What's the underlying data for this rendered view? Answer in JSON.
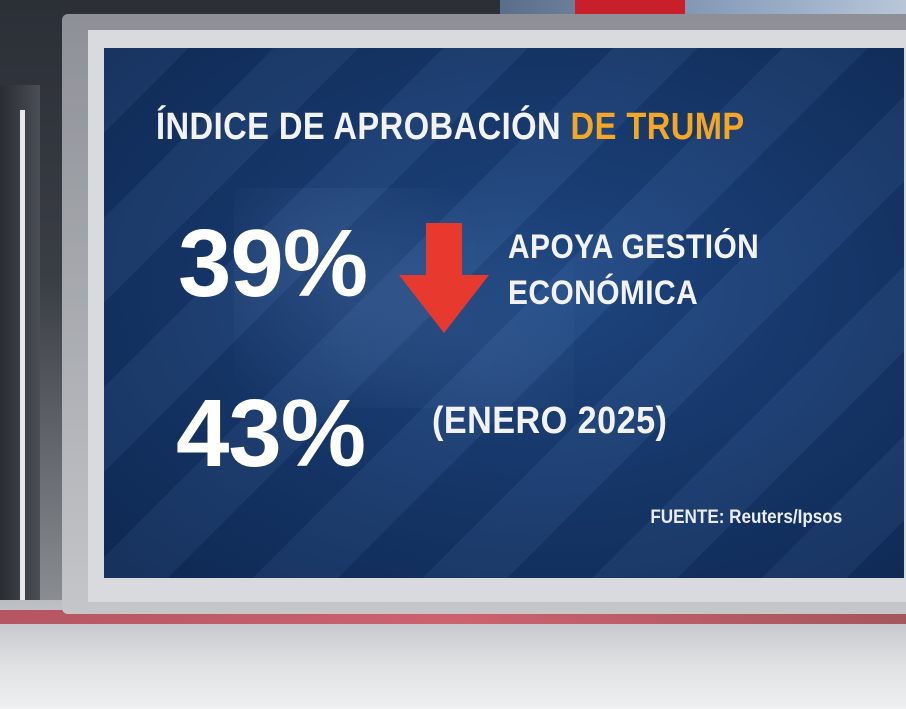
{
  "graphic": {
    "title_main": "ÍNDICE DE APROBACIÓN",
    "title_accent": "DE TRUMP",
    "stat_current": "39%",
    "stat_current_label_line1": "APOYA GESTIÓN",
    "stat_current_label_line2": "ECONÓMICA",
    "stat_previous": "43%",
    "stat_previous_label": "(ENERO 2025)",
    "source": "FUENTE: Reuters/Ipsos",
    "trend_icon": "down-arrow-icon"
  },
  "colors": {
    "accent": "#f5a623",
    "arrow": "#e8392f",
    "screen_background": "#173a70",
    "text": "#ffffff"
  }
}
